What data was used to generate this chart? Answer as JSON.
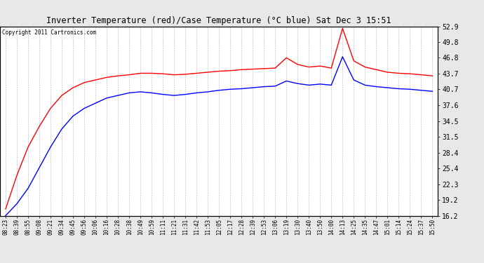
{
  "title": "Inverter Temperature (red)/Case Temperature (°C blue) Sat Dec 3 15:51",
  "copyright": "Copyright 2011 Cartronics.com",
  "ylim": [
    16.2,
    52.9
  ],
  "yticks_right": [
    16.2,
    19.2,
    22.3,
    25.4,
    28.4,
    31.5,
    34.5,
    37.6,
    40.7,
    43.7,
    46.8,
    49.8,
    52.9
  ],
  "background_color": "#e8e8e8",
  "plot_bg_color": "#ffffff",
  "grid_color": "#aaaaaa",
  "red_color": "#ff0000",
  "blue_color": "#0000ff",
  "x_labels": [
    "08:23",
    "08:39",
    "08:55",
    "09:08",
    "09:21",
    "09:34",
    "09:45",
    "09:56",
    "10:06",
    "10:16",
    "10:28",
    "10:38",
    "10:49",
    "10:59",
    "11:11",
    "11:21",
    "11:31",
    "11:42",
    "11:53",
    "12:05",
    "12:17",
    "12:28",
    "12:39",
    "12:53",
    "13:06",
    "13:19",
    "13:30",
    "13:40",
    "13:50",
    "14:00",
    "14:13",
    "14:25",
    "14:35",
    "14:47",
    "15:01",
    "15:14",
    "15:24",
    "15:37",
    "15:50"
  ],
  "red_values": [
    17.5,
    24.0,
    29.5,
    33.5,
    37.0,
    39.5,
    41.0,
    42.0,
    42.5,
    43.0,
    43.3,
    43.5,
    43.8,
    43.8,
    43.7,
    43.5,
    43.6,
    43.8,
    44.0,
    44.2,
    44.3,
    44.5,
    44.6,
    44.7,
    44.8,
    46.8,
    45.5,
    45.0,
    45.2,
    44.8,
    52.5,
    46.2,
    45.0,
    44.5,
    44.0,
    43.8,
    43.7,
    43.5,
    43.3
  ],
  "blue_values": [
    16.2,
    18.5,
    21.5,
    25.5,
    29.5,
    33.0,
    35.5,
    37.0,
    38.0,
    39.0,
    39.5,
    40.0,
    40.2,
    40.0,
    39.7,
    39.5,
    39.7,
    40.0,
    40.2,
    40.5,
    40.7,
    40.8,
    41.0,
    41.2,
    41.3,
    42.3,
    41.8,
    41.5,
    41.7,
    41.5,
    47.0,
    42.5,
    41.5,
    41.2,
    41.0,
    40.8,
    40.7,
    40.5,
    40.3
  ]
}
